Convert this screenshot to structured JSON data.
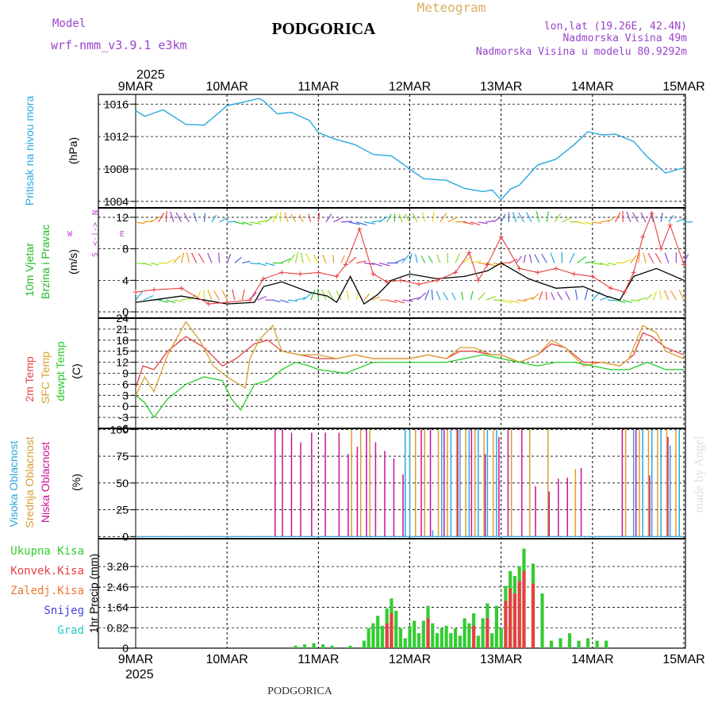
{
  "header": {
    "model_label": "Model",
    "model_name": "wrf-nmm_v3.9.1 e3km",
    "city": "PODGORICA",
    "meteogram_label": "Meteogram",
    "lonlat": "lon,lat (19.26E, 42.4N)",
    "altitude": "Nadmorska Visina 49m",
    "model_altitude": "Nadmorska Visina u modelu 80.9292m"
  },
  "footer": {
    "city": "PODGORICA",
    "credit": "made by Angel"
  },
  "time_axis": {
    "year": "2025",
    "ticks": [
      "9MAR",
      "10MAR",
      "11MAR",
      "12MAR",
      "13MAR",
      "14MAR",
      "15MAR"
    ],
    "range_days": [
      0,
      6
    ],
    "step_hours": 2
  },
  "colors": {
    "pressure": "#2aa8e0",
    "wind_label": "#22bb22",
    "direction_label": "#bb44cc",
    "temp2m": "#e84040",
    "sfc_temp": "#d8a030",
    "dewpt": "#22cc22",
    "cloud_high": "#2aa8e0",
    "cloud_mid": "#d8a030",
    "cloud_low": "#cc1199",
    "precip_total": "#33cc33",
    "precip_conv": "#e84040",
    "precip_frozen": "#ee7733",
    "snow": "#4444dd",
    "hail": "#22c8c8",
    "header_purple": "#9944cc",
    "meteogram_gold": "#d8b060"
  },
  "chart_data": [
    {
      "type": "line",
      "id": "pressure",
      "ylabel_parts": [
        "Pritisak na nivou mora",
        "(hPa)"
      ],
      "yticks": [
        1004,
        1008,
        1012,
        1016
      ],
      "ylim": [
        1003.2,
        1017.2
      ],
      "series": [
        {
          "name": "Pritisak na nivou mora",
          "x_days": [
            0,
            0.1,
            0.3,
            0.55,
            0.75,
            1.0,
            1.2,
            1.35,
            1.4,
            1.55,
            1.7,
            1.9,
            2.0,
            2.15,
            2.4,
            2.6,
            2.8,
            3.0,
            3.15,
            3.4,
            3.6,
            3.8,
            3.9,
            4.0,
            4.1,
            4.2,
            4.4,
            4.6,
            4.8,
            4.95,
            5.1,
            5.25,
            5.45,
            5.6,
            5.8,
            5.95,
            6.0
          ],
          "values": [
            1015.2,
            1014.5,
            1015.3,
            1013.5,
            1013.4,
            1015.8,
            1016.3,
            1016.7,
            1016.4,
            1014.8,
            1015.0,
            1014.0,
            1012.5,
            1011.8,
            1011.0,
            1009.8,
            1009.6,
            1008.0,
            1006.8,
            1006.6,
            1005.6,
            1005.2,
            1005.4,
            1004.2,
            1005.5,
            1006.0,
            1008.5,
            1009.2,
            1011.0,
            1012.6,
            1012.2,
            1012.3,
            1011.4,
            1009.5,
            1007.5,
            1008.0,
            1008.1
          ]
        }
      ]
    },
    {
      "type": "line",
      "id": "wind",
      "ylabel_parts": [
        "10m Vjetar",
        "Brzina i Pravac",
        "(m/s)"
      ],
      "direction_key": {
        "n": "N",
        "e": "E",
        "w": "W",
        "s": "S",
        "arrows": "<-|->"
      },
      "yticks": [
        0,
        4,
        8,
        12
      ],
      "ylim": [
        -0.8,
        13.2
      ],
      "series": [
        {
          "name": "Brzina vjetra",
          "color": "#000000",
          "x_days": [
            0,
            0.5,
            1.0,
            1.3,
            1.4,
            1.6,
            1.9,
            2.1,
            2.2,
            2.35,
            2.5,
            2.65,
            2.8,
            3.0,
            3.3,
            3.6,
            3.85,
            4.0,
            4.3,
            4.6,
            4.9,
            5.15,
            5.3,
            5.45,
            5.7,
            6.0
          ],
          "values": [
            1.2,
            2.0,
            1.0,
            1.2,
            3.2,
            3.8,
            2.5,
            2.0,
            1.2,
            4.5,
            1.0,
            2.2,
            4.0,
            4.8,
            4.2,
            4.5,
            5.2,
            6.2,
            4.2,
            3.0,
            3.2,
            2.0,
            1.5,
            4.5,
            5.5,
            4.0
          ]
        },
        {
          "name": "Udari vjetra",
          "color": "#e84040",
          "x_days": [
            0,
            0.2,
            0.5,
            0.8,
            1.0,
            1.25,
            1.4,
            1.6,
            1.8,
            2.0,
            2.2,
            2.3,
            2.45,
            2.6,
            2.75,
            2.9,
            3.1,
            3.3,
            3.5,
            3.65,
            3.75,
            3.85,
            4.0,
            4.2,
            4.4,
            4.6,
            4.8,
            5.0,
            5.2,
            5.35,
            5.45,
            5.55,
            5.65,
            5.75,
            5.85,
            6.0
          ],
          "values": [
            2.5,
            2.8,
            3.0,
            1.0,
            1.2,
            1.5,
            4.2,
            5.0,
            4.8,
            5.0,
            4.5,
            6.0,
            10.5,
            4.8,
            3.8,
            4.0,
            3.5,
            4.0,
            5.0,
            7.5,
            4.0,
            6.0,
            9.5,
            5.5,
            5.0,
            5.5,
            4.8,
            4.5,
            3.0,
            2.5,
            5.0,
            9.5,
            12.5,
            8.0,
            11.0,
            6.0
          ]
        }
      ]
    },
    {
      "type": "line",
      "id": "temperature",
      "ylabel_parts": [
        "2m Temp",
        "SFC Temp",
        "dewpt Temp",
        "(C)"
      ],
      "yticks": [
        -6,
        -3,
        0,
        3,
        6,
        9,
        12,
        15,
        18,
        21,
        24
      ],
      "ylim": [
        -6,
        24
      ],
      "series": [
        {
          "name": "2m Temp",
          "color": "#e84040",
          "x_days": [
            0,
            0.08,
            0.2,
            0.35,
            0.55,
            0.75,
            0.95,
            1.1,
            1.3,
            1.45,
            1.6,
            1.8,
            2.0,
            2.2,
            2.4,
            2.6,
            2.8,
            3.0,
            3.2,
            3.4,
            3.55,
            3.7,
            3.9,
            4.0,
            4.2,
            4.4,
            4.55,
            4.7,
            4.9,
            5.1,
            5.3,
            5.45,
            5.55,
            5.65,
            5.8,
            6.0
          ],
          "values": [
            5,
            11,
            10,
            15,
            19,
            16,
            11,
            13,
            17,
            18,
            15,
            14,
            13,
            13,
            14,
            13,
            13,
            13,
            14,
            13,
            15,
            15,
            14,
            14,
            12,
            14,
            17,
            16,
            12,
            12,
            11,
            14,
            20,
            19,
            16,
            14
          ]
        },
        {
          "name": "SFC Temp",
          "color": "#d8a030",
          "x_days": [
            0,
            0.1,
            0.2,
            0.35,
            0.55,
            0.7,
            0.85,
            1.0,
            1.2,
            1.25,
            1.35,
            1.5,
            1.6,
            1.8,
            2.0,
            2.2,
            2.4,
            2.6,
            2.8,
            3.0,
            3.2,
            3.4,
            3.55,
            3.7,
            3.9,
            4.0,
            4.2,
            4.4,
            4.55,
            4.7,
            4.9,
            5.1,
            5.3,
            5.4,
            5.55,
            5.7,
            5.8,
            6.0
          ],
          "values": [
            3,
            8,
            4,
            14,
            23,
            18,
            11,
            8,
            5,
            13,
            18,
            22,
            15,
            14,
            14,
            13,
            14,
            13,
            13,
            13,
            14,
            13,
            16,
            16,
            14,
            14,
            12,
            14,
            18,
            16,
            11,
            12,
            11,
            13,
            22,
            20,
            15,
            13
          ]
        },
        {
          "name": "dewpt Temp",
          "color": "#22cc22",
          "x_days": [
            0,
            0.1,
            0.2,
            0.35,
            0.55,
            0.75,
            0.95,
            1.05,
            1.15,
            1.3,
            1.45,
            1.6,
            1.75,
            1.9,
            2.0,
            2.3,
            2.6,
            2.8,
            3.0,
            3.2,
            3.4,
            3.6,
            3.8,
            4.0,
            4.2,
            4.4,
            4.6,
            4.8,
            5.0,
            5.2,
            5.4,
            5.6,
            5.8,
            6.0
          ],
          "values": [
            3,
            1,
            -3,
            2,
            6,
            8,
            7,
            2,
            -1,
            6,
            7,
            10,
            12,
            11,
            10,
            9,
            12,
            12,
            12,
            12,
            12,
            13,
            14,
            13,
            12,
            11,
            12,
            12,
            11,
            10,
            10,
            12,
            10,
            10
          ]
        }
      ]
    },
    {
      "type": "bar",
      "id": "clouds",
      "ylabel_parts": [
        "Visoka Oblacnost",
        "Srednja Oblacnost",
        "Niska Oblacnost",
        "(%)"
      ],
      "yticks": [
        0,
        25,
        50,
        75,
        100
      ],
      "ylim": [
        -2,
        101
      ],
      "series": [
        {
          "name": "Visoka Oblacnost",
          "color": "#2aa8e0",
          "x_days": [
            2.95,
            3.0,
            3.25,
            3.35,
            3.45,
            3.55,
            3.65,
            3.75,
            3.85,
            3.95,
            5.45,
            5.55,
            5.65,
            5.75,
            5.85,
            5.95
          ],
          "values": [
            100,
            100,
            6,
            100,
            100,
            100,
            100,
            100,
            100,
            100,
            100,
            100,
            100,
            100,
            85,
            100
          ]
        },
        {
          "name": "Srednja Oblacnost",
          "color": "#d8a030",
          "x_days": [
            2.35,
            2.45,
            2.55,
            3.05,
            3.15,
            3.3,
            3.4,
            3.5,
            3.6,
            3.7,
            3.8,
            3.9,
            4.1,
            4.3,
            4.5,
            4.8,
            5.35,
            5.5,
            5.6,
            5.7,
            5.8,
            5.9
          ],
          "values": [
            100,
            100,
            100,
            100,
            100,
            100,
            100,
            100,
            100,
            100,
            100,
            100,
            100,
            100,
            100,
            63,
            100,
            100,
            100,
            100,
            100,
            100
          ]
        },
        {
          "name": "Niska Oblacnost",
          "color": "#cc1199",
          "x_days": [
            1.5,
            1.58,
            1.68,
            1.78,
            1.9,
            2.05,
            2.2,
            2.3,
            2.4,
            2.5,
            2.6,
            2.7,
            2.8,
            2.9,
            3.1,
            3.2,
            3.35,
            3.5,
            3.65,
            3.8,
            3.95,
            4.05,
            4.2,
            4.35,
            4.5,
            4.6,
            4.7,
            4.85,
            5.3,
            5.45,
            5.6,
            5.8
          ],
          "values": [
            100,
            100,
            97,
            88,
            97,
            97,
            97,
            77,
            84,
            100,
            88,
            80,
            73,
            58,
            100,
            100,
            100,
            100,
            100,
            77,
            93,
            100,
            100,
            47,
            42,
            54,
            55,
            64,
            100,
            100,
            57,
            93
          ]
        }
      ]
    },
    {
      "type": "bar",
      "id": "precip",
      "ylabel_parts": [
        "1hr Precip (mm)"
      ],
      "legend": [
        "Ukupna Kisa",
        "Konvek.Kisa",
        "Zaledj.Kisa",
        "Snijeg",
        "Grad"
      ],
      "yticks": [
        0,
        0.82,
        1.64,
        2.46,
        3.28
      ],
      "ylim": [
        0,
        4.4
      ],
      "series": [
        {
          "name": "Ukupna Kisa",
          "color": "#33cc33",
          "x_days": [
            1.75,
            1.85,
            1.95,
            2.05,
            2.15,
            2.35,
            2.5,
            2.55,
            2.6,
            2.65,
            2.7,
            2.75,
            2.8,
            2.85,
            2.9,
            2.95,
            3.0,
            3.05,
            3.1,
            3.15,
            3.2,
            3.25,
            3.3,
            3.35,
            3.4,
            3.45,
            3.5,
            3.55,
            3.6,
            3.65,
            3.7,
            3.75,
            3.8,
            3.85,
            3.9,
            3.95,
            4.0,
            4.05,
            4.1,
            4.15,
            4.2,
            4.25,
            4.35,
            4.45,
            4.55,
            4.65,
            4.75,
            4.85,
            4.95,
            5.05,
            5.15
          ],
          "values": [
            0.1,
            0.15,
            0.2,
            0.15,
            0.1,
            0.1,
            0.3,
            0.8,
            1.0,
            1.3,
            0.9,
            1.6,
            2.0,
            1.5,
            0.8,
            0.4,
            0.9,
            1.1,
            0.6,
            1.1,
            1.7,
            1.0,
            0.6,
            0.8,
            0.9,
            0.6,
            0.8,
            0.5,
            1.2,
            1.0,
            1.4,
            0.5,
            1.2,
            1.8,
            0.6,
            1.7,
            0.8,
            2.5,
            3.1,
            2.9,
            3.3,
            4.0,
            3.4,
            2.2,
            0.3,
            0.4,
            0.6,
            0.3,
            0.4,
            0.3,
            0.3
          ]
        },
        {
          "name": "Konvek.Kisa",
          "color": "#e84040",
          "x_days": [
            2.75,
            2.8,
            3.2,
            3.7,
            3.85,
            4.05,
            4.1,
            4.15,
            4.2,
            4.25,
            4.35
          ],
          "values": [
            1.0,
            1.4,
            1.2,
            0.9,
            1.2,
            1.9,
            2.4,
            2.2,
            2.7,
            3.1,
            2.6
          ]
        },
        {
          "name": "Zaledj.Kisa",
          "color": "#ee7733",
          "x_days": [],
          "values": []
        },
        {
          "name": "Snijeg",
          "color": "#4444dd",
          "x_days": [],
          "values": []
        },
        {
          "name": "Grad",
          "color": "#22c8c8",
          "x_days": [],
          "values": []
        }
      ]
    }
  ]
}
